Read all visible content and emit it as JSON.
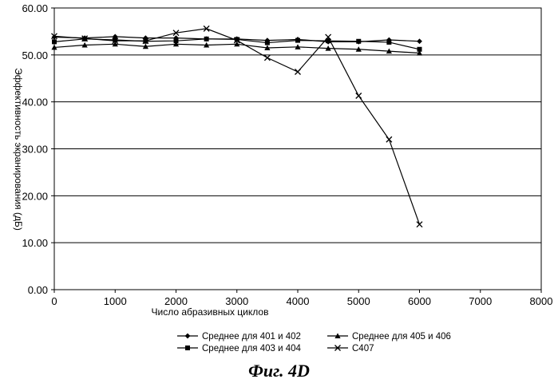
{
  "chart_data": {
    "type": "line",
    "xlabel": "Число абразивных циклов",
    "ylabel": "Эффективность экранирования (дБ)",
    "xlim": [
      0,
      8000
    ],
    "ylim": [
      0,
      60
    ],
    "x_ticks": [
      "0",
      "1000",
      "2000",
      "3000",
      "4000",
      "5000",
      "6000",
      "7000",
      "8000"
    ],
    "y_ticks": [
      "0.00",
      "10.00",
      "20.00",
      "30.00",
      "40.00",
      "50.00",
      "60.00"
    ],
    "grid": "horizontal",
    "legend_position": "bottom",
    "x": [
      0,
      500,
      1000,
      1500,
      2000,
      2500,
      3000,
      3500,
      4000,
      4500,
      5000,
      5500,
      6000
    ],
    "series": [
      {
        "name": "Среднее для 401 и 402",
        "marker": "diamond",
        "values": [
          53.8,
          53.6,
          53.9,
          53.6,
          53.6,
          53.4,
          53.4,
          53.1,
          53.3,
          52.8,
          52.8,
          53.2,
          52.9
        ]
      },
      {
        "name": "Среднее для 405 и 406",
        "marker": "triangle",
        "values": [
          51.6,
          52.1,
          52.3,
          51.8,
          52.3,
          52.1,
          52.3,
          51.5,
          51.7,
          51.4,
          51.2,
          50.8,
          50.4
        ]
      },
      {
        "name": "Среднее для 403 и 404",
        "marker": "square",
        "values": [
          52.8,
          53.4,
          53.2,
          52.9,
          53.0,
          53.4,
          53.3,
          52.6,
          53.1,
          53.0,
          52.9,
          52.7,
          51.2
        ]
      },
      {
        "name": "C407",
        "marker": "x",
        "values": [
          54.0,
          53.5,
          53.0,
          53.0,
          54.7,
          55.6,
          53.1,
          49.4,
          46.4,
          53.8,
          41.3,
          32.0,
          13.9
        ]
      }
    ]
  },
  "caption": "Фиг. 4D"
}
